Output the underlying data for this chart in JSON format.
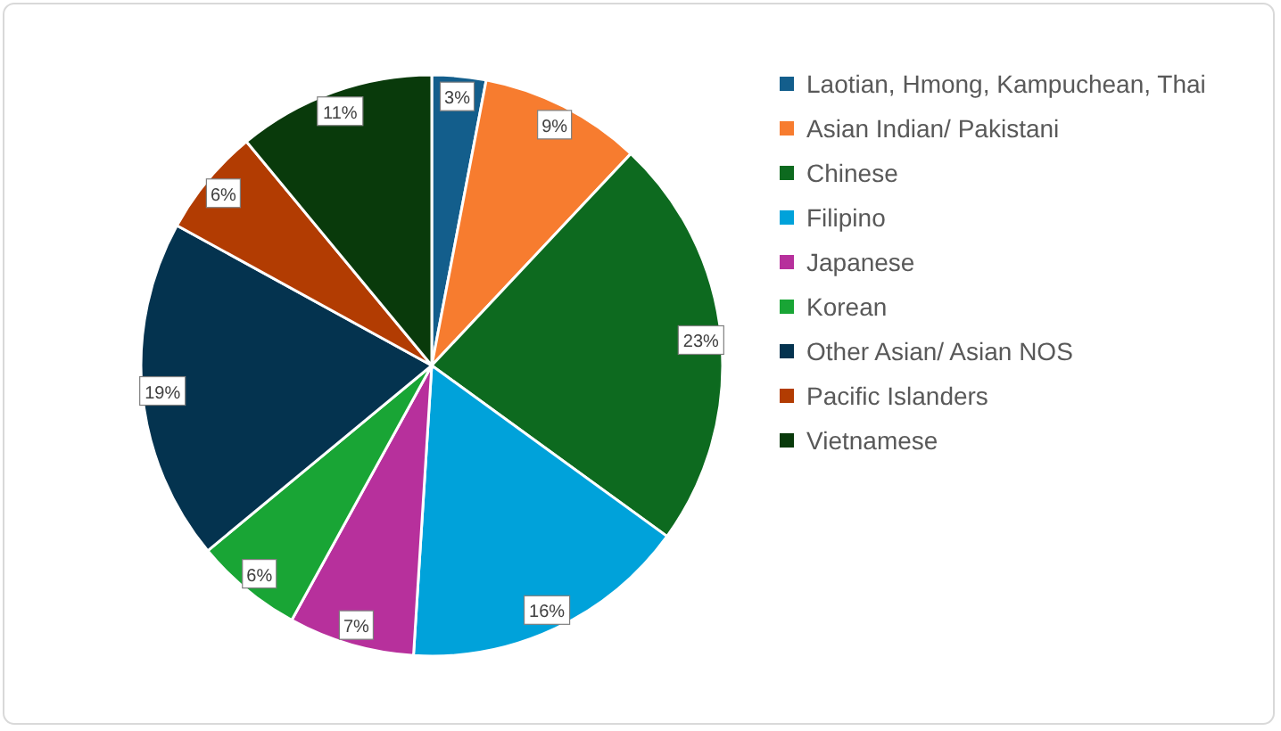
{
  "chart_data": {
    "type": "pie",
    "categories": [
      "Laotian, Hmong, Kampuchean, Thai",
      "Asian Indian/ Pakistani",
      "Chinese",
      "Filipino",
      "Japanese",
      "Korean",
      "Other Asian/ Asian NOS",
      "Pacific Islanders",
      "Vietnamese"
    ],
    "values": [
      3,
      9,
      23,
      16,
      7,
      6,
      19,
      6,
      11
    ],
    "colors": [
      "#135e8c",
      "#f77c2f",
      "#0d6a1f",
      "#00a2da",
      "#b7309c",
      "#19a535",
      "#04334f",
      "#b23c02",
      "#093a0b"
    ],
    "value_labels": [
      "3%",
      "9%",
      "23%",
      "16%",
      "7%",
      "6%",
      "19%",
      "6%",
      "11%"
    ],
    "legend": "right"
  }
}
